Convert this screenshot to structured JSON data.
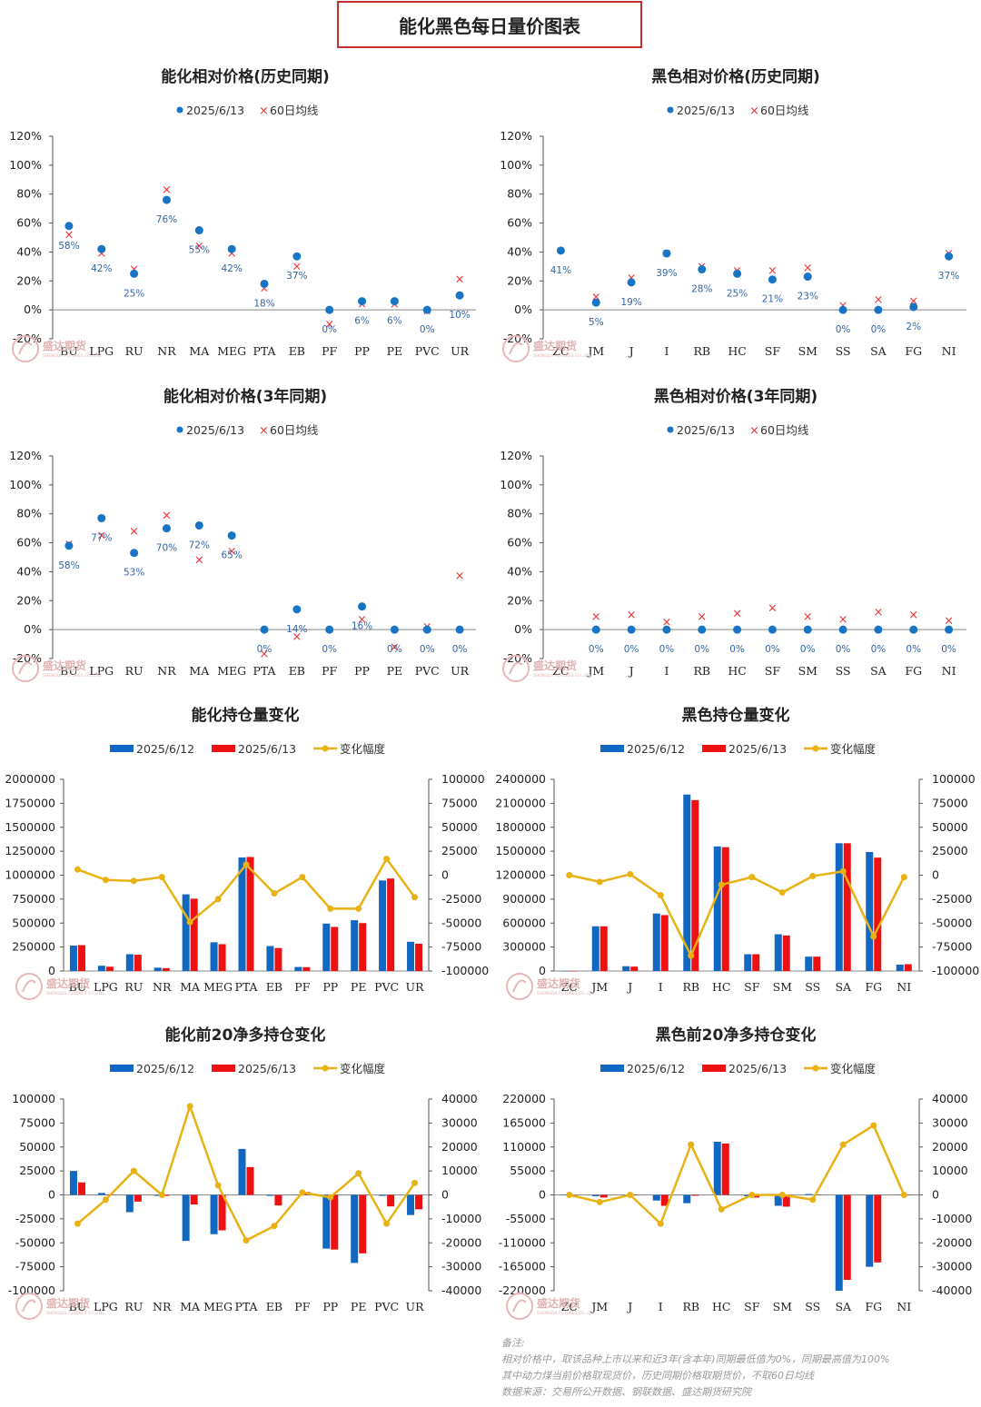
{
  "page_title": "能化黑色每日量价图表",
  "watermark": {
    "cn": "盛达期货",
    "en": "SHENGDA FUTURES CO.,LTD."
  },
  "colors": {
    "dot": "#1874c5",
    "cross": "#ee3333",
    "bar1": "#1268c0",
    "bar2": "#ee1111",
    "line": "#e8b214",
    "axis": "#555555",
    "label": "#3565a8"
  },
  "legend": {
    "date": "2025/6/13",
    "ma": "60日均线",
    "prev": "2025/6/12",
    "cur": "2025/6/13",
    "change": "变化幅度"
  },
  "notes": [
    "备注:",
    "相对价格中，取该品种上市以来和近3年(含本年)同期最低值为0%，同期最高值为100%",
    "其中动力煤当前价格取现货价，历史同期价格取期货价，不取60日均线",
    "数据来源：交易所公开数据、钢联数据、盛达期货研究院"
  ],
  "chart_data": [
    {
      "id": "energy-hist",
      "type": "scatter",
      "title": "能化相对价格(历史同期)",
      "categories": [
        "BU",
        "LPG",
        "RU",
        "NR",
        "MA",
        "MEG",
        "PTA",
        "EB",
        "PF",
        "PP",
        "PE",
        "PVC",
        "UR"
      ],
      "series": [
        {
          "name": "2025/6/13",
          "values": [
            58,
            42,
            25,
            76,
            55,
            42,
            18,
            37,
            0,
            6,
            6,
            0,
            10
          ]
        },
        {
          "name": "60日均线",
          "values": [
            52,
            39,
            28,
            83,
            44,
            39,
            15,
            30,
            -10,
            4,
            4,
            -1,
            21
          ]
        }
      ],
      "labels": [
        "58%",
        "42%",
        "25%",
        "76%",
        "55%",
        "42%",
        "18%",
        "37%",
        "0%",
        "6%",
        "6%",
        "0%",
        "10%"
      ],
      "ylim": [
        -20,
        120
      ],
      "yticks": [
        -20,
        0,
        20,
        40,
        60,
        80,
        100,
        120
      ],
      "yformat": "pct"
    },
    {
      "id": "ferrous-hist",
      "type": "scatter",
      "title": "黑色相对价格(历史同期)",
      "categories": [
        "ZC",
        "JM",
        "J",
        "I",
        "RB",
        "HC",
        "SF",
        "SM",
        "SS",
        "SA",
        "FG",
        "NI"
      ],
      "series": [
        {
          "name": "2025/6/13",
          "values": [
            41,
            5,
            19,
            39,
            28,
            25,
            21,
            23,
            0,
            0,
            2,
            37
          ]
        },
        {
          "name": "60日均线",
          "values": [
            null,
            9,
            22,
            39,
            30,
            27,
            27,
            29,
            3,
            7,
            6,
            39
          ]
        }
      ],
      "labels": [
        "41%",
        "5%",
        "19%",
        "39%",
        "28%",
        "25%",
        "21%",
        "23%",
        "0%",
        "0%",
        "2%",
        "37%"
      ],
      "ylim": [
        -20,
        120
      ],
      "yticks": [
        -20,
        0,
        20,
        40,
        60,
        80,
        100,
        120
      ],
      "yformat": "pct"
    },
    {
      "id": "energy-3y",
      "type": "scatter",
      "title": "能化相对价格(3年同期)",
      "categories": [
        "BU",
        "LPG",
        "RU",
        "NR",
        "MA",
        "MEG",
        "PTA",
        "EB",
        "PF",
        "PP",
        "PE",
        "PVC",
        "UR"
      ],
      "series": [
        {
          "name": "2025/6/13",
          "values": [
            58,
            77,
            53,
            70,
            72,
            65,
            0,
            14,
            0,
            16,
            0,
            0,
            0
          ]
        },
        {
          "name": "60日均线",
          "values": [
            59,
            65,
            68,
            79,
            48,
            54,
            -17,
            -5,
            null,
            7,
            -12,
            2,
            37
          ]
        }
      ],
      "labels": [
        "58%",
        "77%",
        "53%",
        "70%",
        "72%",
        "65%",
        "0%",
        "14%",
        "0%",
        "16%",
        "0%",
        "0%",
        "0%"
      ],
      "ylim": [
        -20,
        120
      ],
      "yticks": [
        -20,
        0,
        20,
        40,
        60,
        80,
        100,
        120
      ],
      "yformat": "pct"
    },
    {
      "id": "ferrous-3y",
      "type": "scatter",
      "title": "黑色相对价格(3年同期)",
      "categories": [
        "ZC",
        "JM",
        "J",
        "I",
        "RB",
        "HC",
        "SF",
        "SM",
        "SS",
        "SA",
        "FG",
        "NI"
      ],
      "series": [
        {
          "name": "2025/6/13",
          "values": [
            null,
            0,
            0,
            0,
            0,
            0,
            0,
            0,
            0,
            0,
            0,
            0
          ]
        },
        {
          "name": "60日均线",
          "values": [
            null,
            9,
            10,
            5,
            9,
            11,
            15,
            9,
            7,
            12,
            10,
            6
          ]
        }
      ],
      "labels": [
        "",
        "0%",
        "0%",
        "0%",
        "0%",
        "0%",
        "0%",
        "0%",
        "0%",
        "0%",
        "0%",
        "0%"
      ],
      "ylim": [
        -20,
        120
      ],
      "yticks": [
        -20,
        0,
        20,
        40,
        60,
        80,
        100,
        120
      ],
      "yformat": "pct"
    },
    {
      "id": "energy-oi",
      "type": "bar",
      "title": "能化持仓量变化",
      "categories": [
        "BU",
        "LPG",
        "RU",
        "NR",
        "MA",
        "MEG",
        "PTA",
        "EB",
        "PF",
        "PP",
        "PE",
        "PVC",
        "UR"
      ],
      "series": [
        {
          "name": "2025/6/12",
          "values": [
            265000,
            55000,
            175000,
            35000,
            800000,
            300000,
            1185000,
            260000,
            42000,
            495000,
            530000,
            945000,
            305000
          ]
        },
        {
          "name": "2025/6/13",
          "values": [
            270000,
            45000,
            170000,
            30000,
            755000,
            280000,
            1190000,
            240000,
            40000,
            460000,
            500000,
            965000,
            285000
          ]
        },
        {
          "name": "变化幅度",
          "values": [
            6000,
            -5000,
            -6000,
            -2000,
            -49000,
            -25000,
            11000,
            -19000,
            -2000,
            -35000,
            -35000,
            17000,
            -23000
          ]
        }
      ],
      "ylim": [
        0,
        2000000
      ],
      "yticks": [
        0,
        250000,
        500000,
        750000,
        1000000,
        1250000,
        1500000,
        1750000,
        2000000
      ],
      "y2lim": [
        -100000,
        100000
      ],
      "y2ticks": [
        -100000,
        -75000,
        -50000,
        -25000,
        0,
        25000,
        50000,
        75000,
        100000
      ]
    },
    {
      "id": "ferrous-oi",
      "type": "bar",
      "title": "黑色持仓量变化",
      "categories": [
        "ZC",
        "JM",
        "J",
        "I",
        "RB",
        "HC",
        "SF",
        "SM",
        "SS",
        "SA",
        "FG",
        "NI"
      ],
      "series": [
        {
          "name": "2025/6/12",
          "values": [
            0,
            560000,
            60000,
            720000,
            2210000,
            1560000,
            210000,
            460000,
            180000,
            1600000,
            1490000,
            80000
          ]
        },
        {
          "name": "2025/6/13",
          "values": [
            0,
            560000,
            55000,
            700000,
            2140000,
            1550000,
            210000,
            445000,
            180000,
            1600000,
            1420000,
            85000
          ]
        },
        {
          "name": "变化幅度",
          "values": [
            0,
            -7000,
            1000,
            -21000,
            -84000,
            -10000,
            -2000,
            -18000,
            -1000,
            4000,
            -64000,
            -2000
          ]
        }
      ],
      "ylim": [
        0,
        2400000
      ],
      "yticks": [
        0,
        300000,
        600000,
        900000,
        1200000,
        1500000,
        1800000,
        2100000,
        2400000
      ],
      "y2lim": [
        -100000,
        100000
      ],
      "y2ticks": [
        -100000,
        -75000,
        -50000,
        -25000,
        0,
        25000,
        50000,
        75000,
        100000
      ]
    },
    {
      "id": "energy-net",
      "type": "bar",
      "title": "能化前20净多持仓变化",
      "categories": [
        "BU",
        "LPG",
        "RU",
        "NR",
        "MA",
        "MEG",
        "PTA",
        "EB",
        "PF",
        "PP",
        "PE",
        "PVC",
        "UR"
      ],
      "series": [
        {
          "name": "2025/6/12",
          "values": [
            25000,
            2000,
            -18000,
            -1000,
            -48000,
            -41000,
            48000,
            -1000,
            0,
            -56000,
            -71000,
            -1000,
            -21000
          ]
        },
        {
          "name": "2025/6/13",
          "values": [
            13000,
            0,
            -7000,
            -1000,
            -10000,
            -37000,
            29000,
            -11000,
            3000,
            -57000,
            -61000,
            -12000,
            -15000
          ]
        },
        {
          "name": "变化幅度",
          "values": [
            -12000,
            -2000,
            10000,
            0,
            37000,
            4000,
            -19000,
            -13000,
            1000,
            -1000,
            9000,
            -12000,
            5000
          ]
        }
      ],
      "ylim": [
        -100000,
        100000
      ],
      "yticks": [
        -100000,
        -75000,
        -50000,
        -25000,
        0,
        25000,
        50000,
        75000,
        100000
      ],
      "y2lim": [
        -40000,
        40000
      ],
      "y2ticks": [
        -40000,
        -30000,
        -20000,
        -10000,
        0,
        10000,
        20000,
        30000,
        40000
      ]
    },
    {
      "id": "ferrous-net",
      "type": "bar",
      "title": "黑色前20净多持仓变化",
      "categories": [
        "ZC",
        "JM",
        "J",
        "I",
        "RB",
        "HC",
        "SF",
        "SM",
        "SS",
        "SA",
        "FG",
        "NI"
      ],
      "series": [
        {
          "name": "2025/6/12",
          "values": [
            0,
            -3000,
            -1000,
            -13000,
            -19000,
            122000,
            -3000,
            -25000,
            2000,
            -220000,
            -165000,
            0
          ]
        },
        {
          "name": "2025/6/13",
          "values": [
            0,
            -6000,
            1000,
            -25000,
            -2000,
            118000,
            -6000,
            -27000,
            0,
            -195000,
            -155000,
            0
          ]
        },
        {
          "name": "变化幅度",
          "values": [
            0,
            -3000,
            0,
            -12000,
            21000,
            -6000,
            0,
            0,
            -2000,
            21000,
            29000,
            0
          ]
        }
      ],
      "ylim": [
        -220000,
        220000
      ],
      "yticks": [
        -220000,
        -165000,
        -110000,
        -55000,
        0,
        55000,
        110000,
        165000,
        220000
      ],
      "y2lim": [
        -40000,
        40000
      ],
      "y2ticks": [
        -40000,
        -30000,
        -20000,
        -10000,
        0,
        10000,
        20000,
        30000,
        40000
      ]
    }
  ]
}
